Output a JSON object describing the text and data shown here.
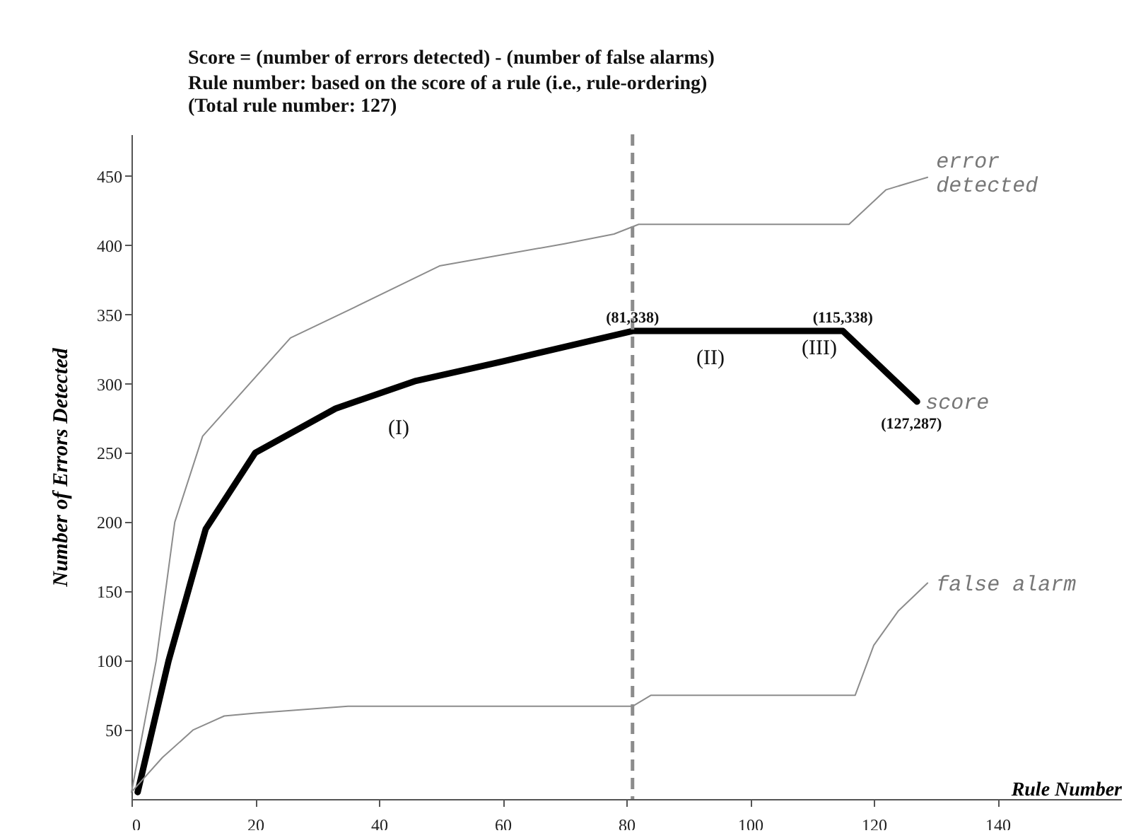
{
  "chart_data": {
    "type": "line",
    "title": "Score = (number of errors detected) - (number of false alarms)",
    "subtitle": "Rule number: based on the score of a  rule (i.e., rule-ordering)\n(Total rule number: 127)",
    "xlabel": "Rule Number",
    "ylabel": "Number of  Errors  Detected",
    "xlim": [
      0,
      160
    ],
    "xticks": [
      0,
      20,
      40,
      60,
      80,
      100,
      120,
      140
    ],
    "ylim": [
      0,
      480
    ],
    "yticks": [
      50,
      100,
      150,
      200,
      250,
      300,
      350,
      400,
      450
    ],
    "grid": false,
    "legend": false,
    "marker": "none",
    "series": [
      {
        "name": "score",
        "color": "#000000",
        "x": [
          1,
          6,
          12,
          20,
          33,
          46,
          60,
          81,
          115,
          127
        ],
        "values": [
          5,
          100,
          195,
          250,
          282,
          302,
          316,
          338,
          338,
          287
        ]
      },
      {
        "name": "error detected",
        "color": "#8c8c8c",
        "x": [
          0,
          4,
          7,
          11.5,
          25.7,
          36,
          49.8,
          70,
          78,
          82,
          116,
          122,
          128.7
        ],
        "values": [
          5,
          100,
          200,
          262,
          333,
          355,
          385,
          401,
          408,
          415,
          415,
          440,
          449
        ]
      },
      {
        "name": "false alarm",
        "color": "#8c8c8c",
        "x": [
          0,
          5,
          10,
          15,
          20,
          35,
          81,
          84,
          117,
          120,
          124,
          128.7
        ],
        "values": [
          5,
          30,
          50,
          60,
          62,
          67,
          67,
          75,
          75,
          111,
          136,
          156
        ]
      }
    ],
    "ref_lines": [
      {
        "axis": "x",
        "value": 81,
        "color": "#8c8c8c",
        "line_style": "dashed"
      }
    ],
    "annotations": [
      {
        "text": "(81,338)",
        "x": 81,
        "y": 338
      },
      {
        "text": "(115,338)",
        "x": 115,
        "y": 338
      },
      {
        "text": "(127,287)",
        "x": 127,
        "y": 287
      },
      "(I)",
      "(II)",
      "(III)"
    ]
  }
}
